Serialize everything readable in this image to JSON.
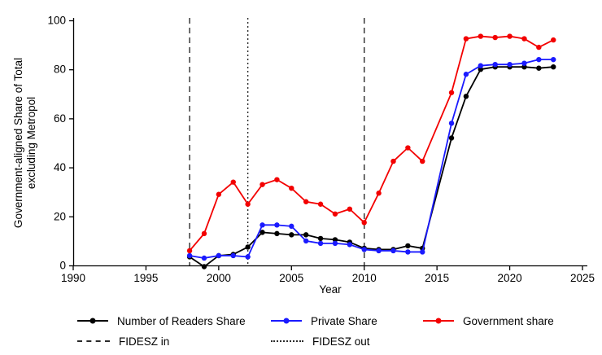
{
  "figure": {
    "background": "#ffffff",
    "text_color": "#000000",
    "axis_color": "#000000",
    "vline_color": "#2b2b2b"
  },
  "chart_data": {
    "type": "line",
    "title": "",
    "xlabel": "Year",
    "ylabel_line1": "Government-aligned Share of Total",
    "ylabel_line2": "excluding Metropol",
    "xlim": [
      1990,
      2025
    ],
    "ylim": [
      0,
      100
    ],
    "x_ticks": [
      1990,
      1995,
      2000,
      2005,
      2010,
      2015,
      2020,
      2025
    ],
    "y_ticks": [
      0,
      20,
      40,
      60,
      80,
      100
    ],
    "grid": false,
    "legend_position": "bottom",
    "x": [
      1998,
      1999,
      2000,
      2001,
      2002,
      2003,
      2004,
      2005,
      2006,
      2007,
      2008,
      2009,
      2010,
      2011,
      2012,
      2013,
      2014,
      2016,
      2017,
      2018,
      2019,
      2020,
      2021,
      2022,
      2023
    ],
    "series": [
      {
        "name": "Number of Readers Share",
        "color": "#000000",
        "values": [
          3.5,
          -0.5,
          4,
          4.5,
          7.5,
          13.5,
          13,
          12.5,
          12.5,
          11,
          10.5,
          9.5,
          7,
          6.5,
          6.5,
          8,
          7,
          52,
          69,
          80,
          81,
          81,
          81,
          80.5,
          81
        ]
      },
      {
        "name": "Private Share",
        "color": "#1a1aff",
        "values": [
          4,
          3,
          4,
          4,
          3.5,
          16.5,
          16.5,
          16,
          10,
          9,
          9,
          8.5,
          6.5,
          6,
          6,
          5.5,
          5.5,
          58,
          78,
          81.5,
          82,
          82,
          82.5,
          84,
          84
        ]
      },
      {
        "name": "Government share",
        "color": "#f30000",
        "values": [
          6,
          13,
          29,
          34,
          25,
          33,
          35,
          31.5,
          26,
          25,
          21,
          23,
          17.5,
          29.5,
          42.5,
          48,
          42.5,
          70.5,
          92.5,
          93.5,
          93,
          93.5,
          92.5,
          89,
          92
        ]
      }
    ],
    "vlines": [
      {
        "label": "FIDESZ in",
        "style": "dashed",
        "years": [
          1998,
          2010
        ]
      },
      {
        "label": "FIDESZ out",
        "style": "dotted",
        "years": [
          2002
        ]
      }
    ]
  }
}
